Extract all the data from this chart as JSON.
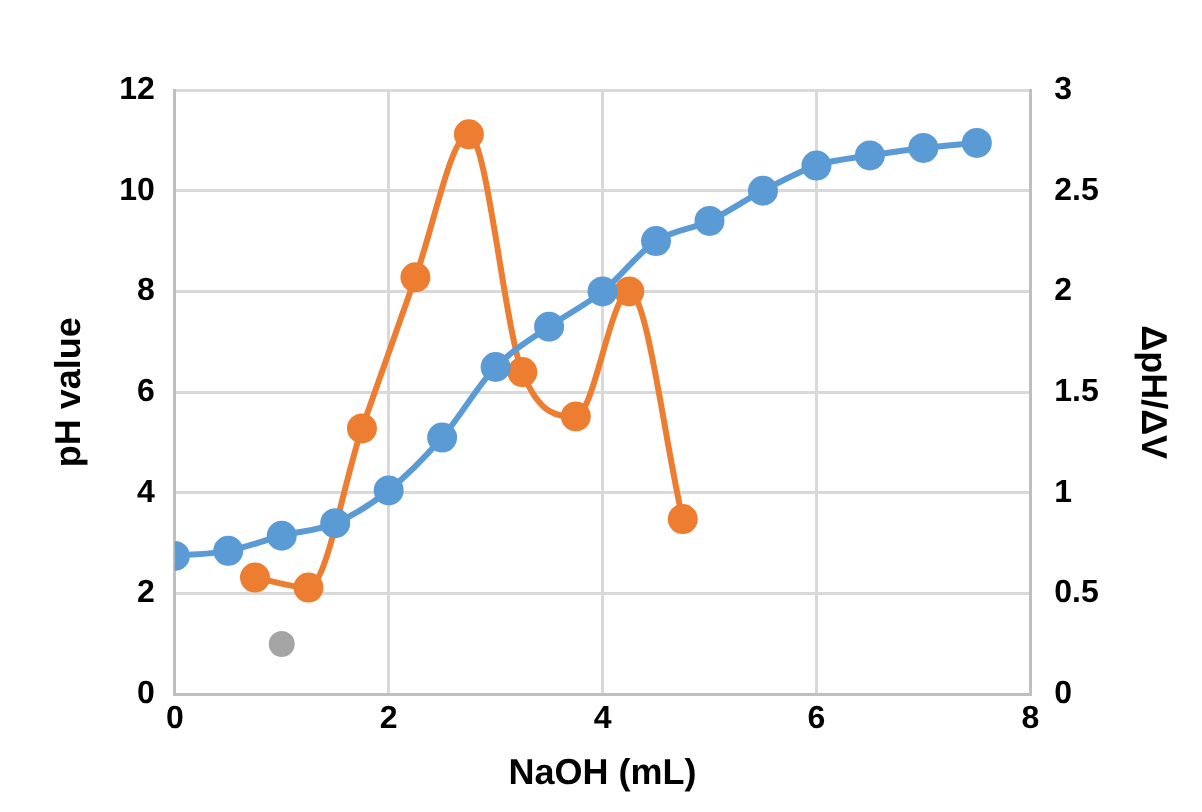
{
  "chart_data": {
    "type": "line",
    "xlabel": "NaOH (mL)",
    "ylabel": "pH value",
    "y2label": "ΔpH/ΔV",
    "xlim": [
      0,
      8
    ],
    "xticks": [
      0,
      2,
      4,
      6,
      8
    ],
    "ylim": [
      0,
      12
    ],
    "yticks": [
      0,
      2,
      4,
      6,
      8,
      10,
      12
    ],
    "y2lim": [
      0,
      3
    ],
    "y2ticks": [
      0,
      0.5,
      1,
      1.5,
      2,
      2.5,
      3
    ],
    "grid": true,
    "legend": false,
    "marker": "circle",
    "series": [
      {
        "color": "#5b9bd5",
        "x": [
          0,
          0.5,
          1,
          1.5,
          2,
          2.5,
          3,
          3.5,
          4,
          4.5,
          5,
          5.5,
          6,
          6.5,
          7,
          7.5
        ],
        "values": [
          2.75,
          2.85,
          3.15,
          3.4,
          4.05,
          5.1,
          6.5,
          7.3,
          8.0,
          9.0,
          9.4,
          10.0,
          10.5,
          10.7,
          10.85,
          10.95
        ]
      },
      {
        "color": "#ed7d31",
        "axis": "y2",
        "x": [
          0.75,
          1.25,
          1.75,
          2.25,
          2.75,
          3.25,
          3.75,
          4.25,
          4.75
        ],
        "values": [
          0.58,
          0.53,
          1.32,
          2.07,
          2.78,
          1.6,
          1.38,
          2.0,
          0.87
        ]
      },
      {
        "type": "scatter",
        "color": "#a5a5a5",
        "x": [
          1
        ],
        "values": [
          1
        ]
      }
    ]
  }
}
